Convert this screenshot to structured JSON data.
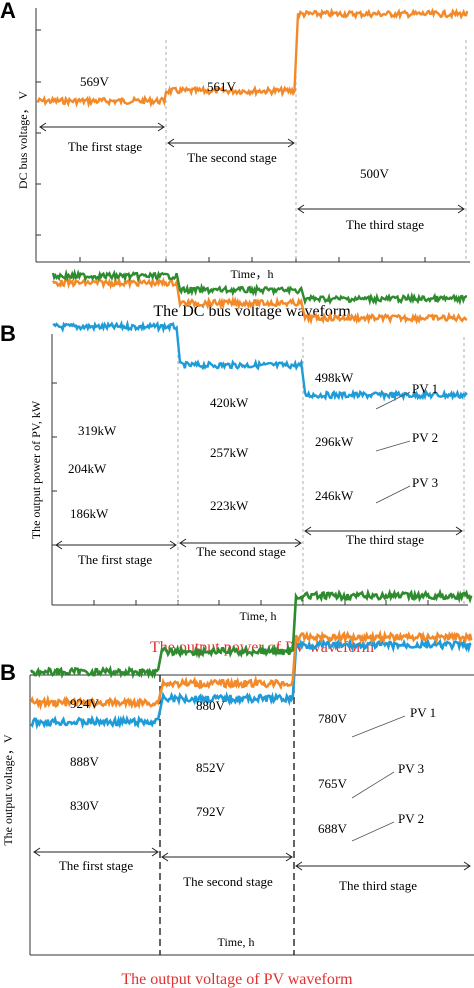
{
  "colors": {
    "pv1": "#1f9bd8",
    "pv2": "#f28a2a",
    "pv3": "#2e8b2e",
    "bus": "#f28a2a",
    "red_caption": "#e03030"
  },
  "chart_data": [
    {
      "type": "line",
      "panel": "A",
      "title": "The DC bus voltage waveform",
      "xlabel": "Time，h",
      "ylabel": "DC bus voltage， V",
      "grid": false,
      "stages": [
        "The first stage",
        "The second stage",
        "The third stage"
      ],
      "series": [
        {
          "values": [
            569,
            561,
            500
          ],
          "labels": [
            "569V",
            "561V",
            "500V"
          ],
          "color": "#f28a2a"
        }
      ]
    },
    {
      "type": "line",
      "panel": "B",
      "title": "The output power of PV waveform",
      "xlabel": "Time, h",
      "ylabel": "The output power of PV, kW",
      "grid": false,
      "stages": [
        "The first stage",
        "The second stage",
        "The third stage"
      ],
      "series": [
        {
          "name": "PV 1",
          "values": [
            319,
            420,
            498
          ],
          "labels": [
            "319kW",
            "420kW",
            "498kW"
          ],
          "color": "#1f9bd8"
        },
        {
          "name": "PV 2",
          "values": [
            204,
            257,
            296
          ],
          "labels": [
            "204kW",
            "257kW",
            "296kW"
          ],
          "color": "#f28a2a"
        },
        {
          "name": "PV 3",
          "values": [
            186,
            223,
            246
          ],
          "labels": [
            "186kW",
            "223kW",
            "246kW"
          ],
          "color": "#2e8b2e"
        }
      ]
    },
    {
      "type": "line",
      "panel": "B",
      "title": "The output voltage of PV waveform",
      "xlabel": "Time, h",
      "ylabel": "The output voltage，V",
      "grid": false,
      "stages": [
        "The first stage",
        "The second stage",
        "The third stage"
      ],
      "series": [
        {
          "values": [
            924,
            880,
            780
          ],
          "labels": [
            "924V",
            "880V",
            "780V"
          ],
          "color": "#1f9bd8",
          "legend": "PV 1"
        },
        {
          "values": [
            888,
            852,
            765
          ],
          "labels": [
            "888V",
            "852V",
            "765V"
          ],
          "color": "#f28a2a",
          "legend": "PV 3"
        },
        {
          "values": [
            830,
            792,
            688
          ],
          "labels": [
            "830V",
            "792V",
            "688V"
          ],
          "color": "#2e8b2e",
          "legend": "PV 2"
        }
      ]
    }
  ]
}
